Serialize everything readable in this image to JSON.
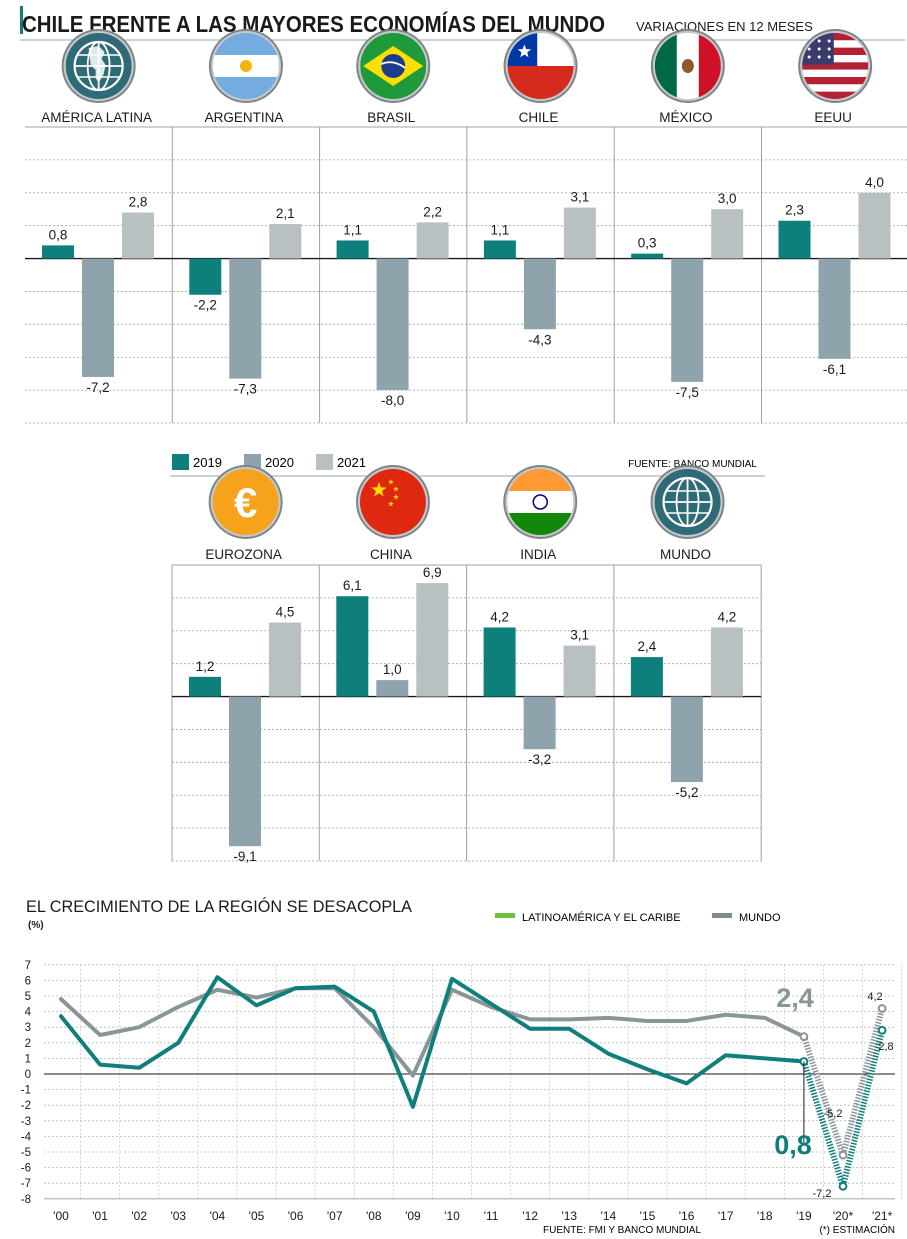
{
  "header": {
    "title": "CHILE FRENTE A LAS MAYORES ECONOMÍAS DEL MUNDO",
    "subtitle": "VARIACIONES EN 12 MESES"
  },
  "legend": {
    "items": [
      {
        "label": "2019",
        "color": "#0e7f7b"
      },
      {
        "label": "2020",
        "color": "#8fa3ad"
      },
      {
        "label": "2021",
        "color": "#b9c0c2"
      }
    ],
    "source": "FUENTE: BANCO MUNDIAL"
  },
  "chart_data": [
    {
      "type": "bar",
      "series_names": [
        "2019",
        "2020",
        "2021"
      ],
      "groups": [
        {
          "label": "AMÉRICA LATINA",
          "icon": "globe-americas-icon",
          "values": [
            0.8,
            -7.2,
            2.8
          ],
          "value_labels": [
            "0,8",
            "-7,2",
            "2,8"
          ]
        },
        {
          "label": "ARGENTINA",
          "icon": "flag-argentina-icon",
          "values": [
            -2.2,
            -7.3,
            2.1
          ],
          "value_labels": [
            "-2,2",
            "-7,3",
            "2,1"
          ]
        },
        {
          "label": "BRASIL",
          "icon": "flag-brazil-icon",
          "values": [
            1.1,
            -8.0,
            2.2
          ],
          "value_labels": [
            "1,1",
            "-8,0",
            "2,2"
          ]
        },
        {
          "label": "CHILE",
          "icon": "flag-chile-icon",
          "values": [
            1.1,
            -4.3,
            3.1
          ],
          "value_labels": [
            "1,1",
            "-4,3",
            "3,1"
          ]
        },
        {
          "label": "MÉXICO",
          "icon": "flag-mexico-icon",
          "values": [
            0.3,
            -7.5,
            3.0
          ],
          "value_labels": [
            "0,3",
            "-7,5",
            "3,0"
          ]
        },
        {
          "label": "EEUU",
          "icon": "flag-usa-icon",
          "values": [
            2.3,
            -6.1,
            4.0
          ],
          "value_labels": [
            "2,3",
            "-6,1",
            "4,0"
          ]
        }
      ],
      "ylim": [
        -10,
        8
      ],
      "grid": true
    },
    {
      "type": "bar",
      "series_names": [
        "2019",
        "2020",
        "2021"
      ],
      "groups": [
        {
          "label": "EUROZONA",
          "icon": "euro-icon",
          "values": [
            1.2,
            -9.1,
            4.5
          ],
          "value_labels": [
            "1,2",
            "-9,1",
            "4,5"
          ]
        },
        {
          "label": "CHINA",
          "icon": "flag-china-icon",
          "values": [
            6.1,
            1.0,
            6.9
          ],
          "value_labels": [
            "6,1",
            "1,0",
            "6,9"
          ]
        },
        {
          "label": "INDIA",
          "icon": "flag-india-icon",
          "values": [
            4.2,
            -3.2,
            3.1
          ],
          "value_labels": [
            "4,2",
            "-3,2",
            "3,1"
          ]
        },
        {
          "label": "MUNDO",
          "icon": "globe-world-icon",
          "values": [
            2.4,
            -5.2,
            4.2
          ],
          "value_labels": [
            "2,4",
            "-5,2",
            "4,2"
          ]
        }
      ],
      "ylim": [
        -10,
        8
      ],
      "grid": true
    },
    {
      "type": "line",
      "title": "EL CRECIMIENTO DE LA REGIÓN SE DESACOPLA",
      "ylabel": "(%)",
      "x": [
        "'00",
        "'01",
        "'02",
        "'03",
        "'04",
        "'05",
        "'06",
        "'07",
        "'08",
        "'09",
        "'10",
        "'11",
        "'12",
        "'13",
        "'14",
        "'15",
        "'16",
        "'17",
        "'18",
        "'19",
        "'20*",
        "'21*"
      ],
      "yticks": [
        7,
        6,
        5,
        4,
        3,
        2,
        1,
        0,
        -1,
        -2,
        -3,
        -4,
        -5,
        -6,
        -7,
        -8
      ],
      "ylim": [
        -8,
        7
      ],
      "series": [
        {
          "name": "LATINOAMÉRICA Y EL CARIBE",
          "legend_color": "#6fc13b",
          "color": "#0e7f7b",
          "values": [
            3.7,
            0.6,
            0.4,
            2.0,
            6.2,
            4.4,
            5.5,
            5.6,
            4.0,
            -2.1,
            6.1,
            4.5,
            2.9,
            2.9,
            1.3,
            0.3,
            -0.6,
            1.2,
            1.0,
            0.8,
            -7.2,
            2.8
          ]
        },
        {
          "name": "MUNDO",
          "legend_color": "#7d8a8e",
          "color": "#8a9598",
          "values": [
            4.8,
            2.5,
            3.0,
            4.3,
            5.4,
            4.9,
            5.5,
            5.5,
            3.0,
            -0.1,
            5.4,
            4.3,
            3.5,
            3.5,
            3.6,
            3.4,
            3.4,
            3.8,
            3.6,
            2.4,
            -5.2,
            4.2
          ]
        }
      ],
      "estimated_from_index": 19,
      "annotations": {
        "mundo_2019": "2,4",
        "latam_2019": "0,8",
        "mundo_2020": "-5,2",
        "latam_2020": "-7,2",
        "mundo_2021": "4,2",
        "latam_2021": "2,8"
      },
      "source": "FUENTE: FMI Y BANCO MUNDIAL",
      "footnote": "(*) ESTIMACIÓN"
    }
  ]
}
